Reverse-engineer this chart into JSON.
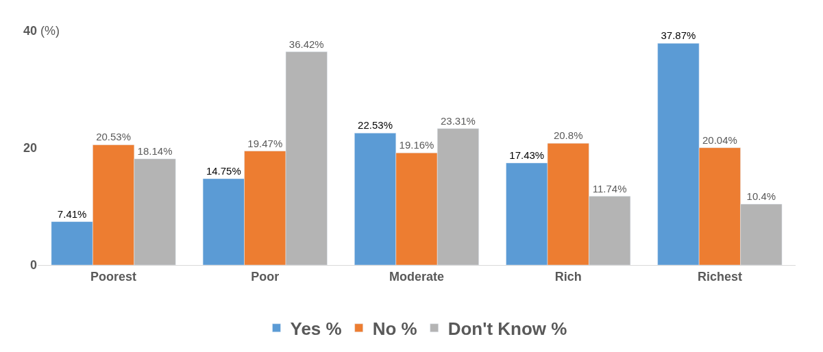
{
  "chart_data": {
    "type": "bar",
    "ylabel": "(%)",
    "categories": [
      "Poorest",
      "Poor",
      "Moderate",
      "Rich",
      "Richest"
    ],
    "series": [
      {
        "name": "Yes %",
        "color": "#5b9bd5",
        "values": [
          7.41,
          14.75,
          22.53,
          17.43,
          37.87
        ],
        "value_labels": [
          "7.41%",
          "14.75%",
          "22.53%",
          "17.43%",
          "37.87%"
        ]
      },
      {
        "name": "No %",
        "color": "#ed7d31",
        "values": [
          20.53,
          19.47,
          19.16,
          20.8,
          20.04
        ],
        "value_labels": [
          "20.53%",
          "19.47%",
          "19.16%",
          "20.8%",
          "20.04%"
        ]
      },
      {
        "name": "Don't Know %",
        "color": "#b4b4b4",
        "values": [
          18.14,
          36.42,
          23.31,
          11.74,
          10.4
        ],
        "value_labels": [
          "18.14%",
          "36.42%",
          "23.31%",
          "11.74%",
          "10.4%"
        ]
      }
    ],
    "ylim": [
      0,
      40
    ],
    "yticks": [
      0,
      20,
      40
    ],
    "legend": "bottom"
  }
}
